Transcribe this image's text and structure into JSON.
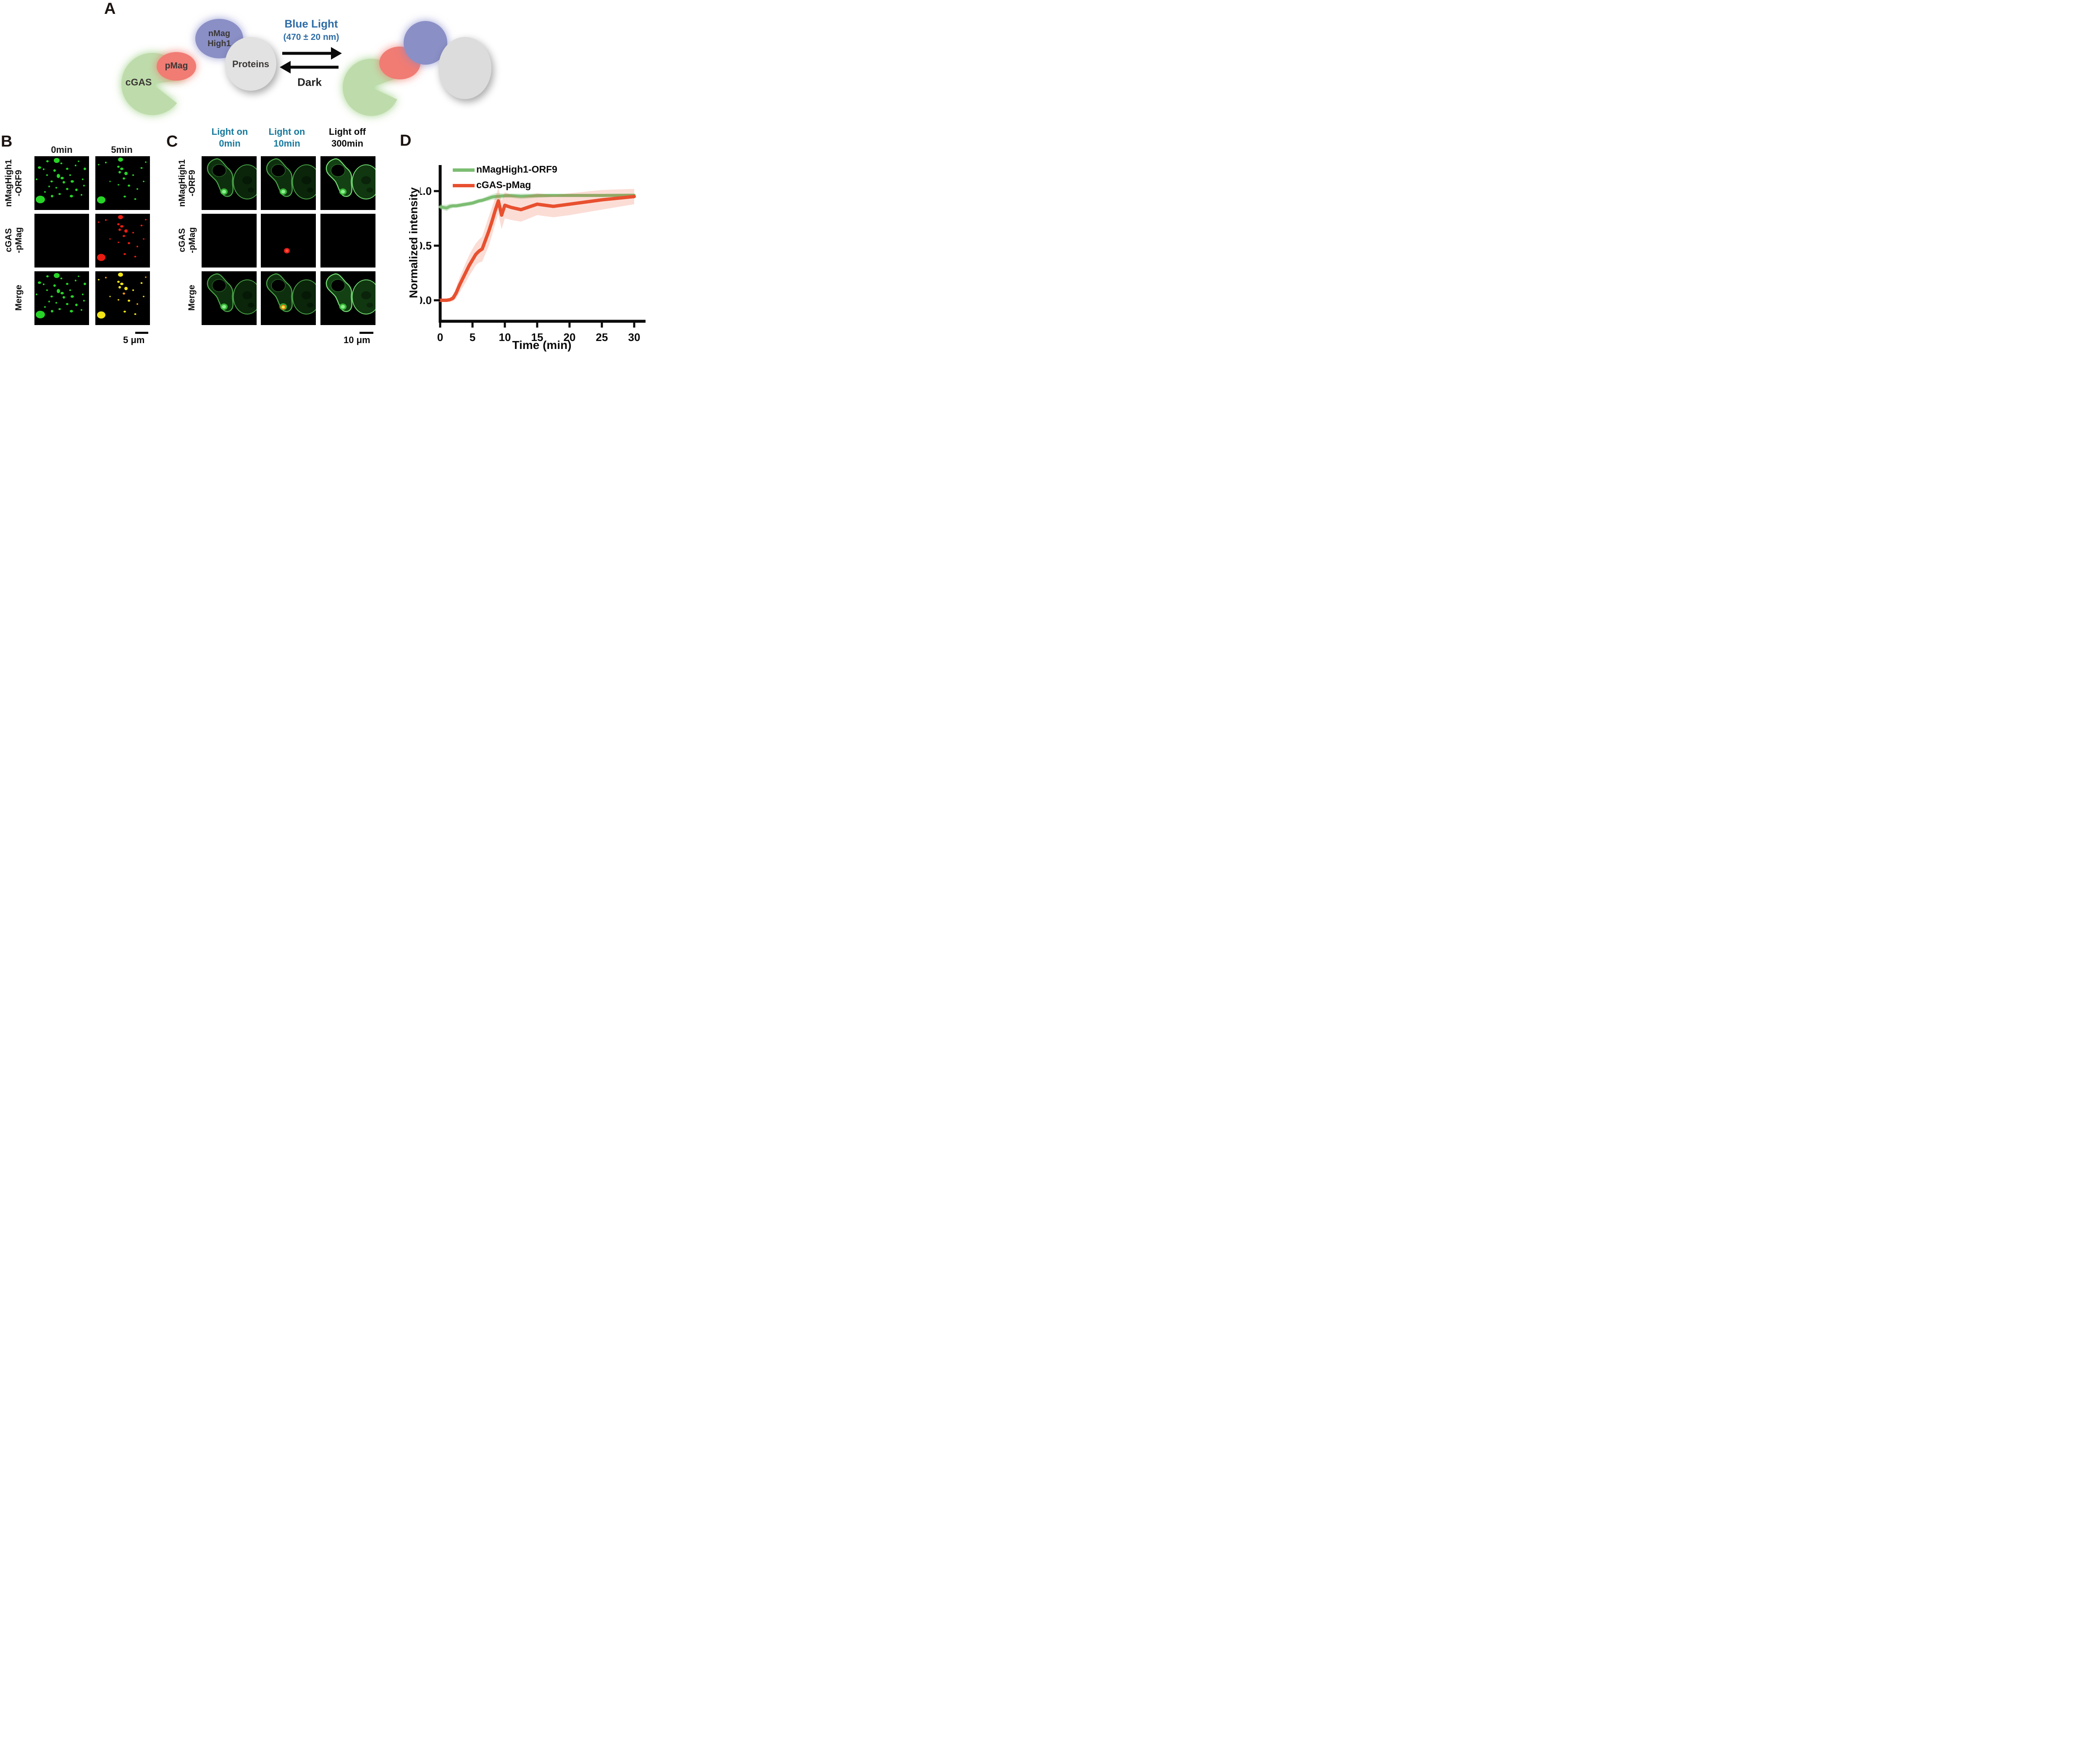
{
  "figure": {
    "panel_a": {
      "label": "A",
      "cgas": "cGAS",
      "pmag": "pMag",
      "nmag_line1": "nMag",
      "nmag_line2": "High1",
      "proteins": "Proteins",
      "blue_light_line1": "Blue Light",
      "blue_light_line2": "(470 ± 20 nm)",
      "dark": "Dark",
      "accent_blue": "#2d6ca6"
    },
    "panel_b": {
      "label": "B",
      "col_headers": [
        "0min",
        "5min"
      ],
      "row_labels": [
        [
          "nMagHigh1",
          "-ORF9"
        ],
        [
          "cGAS",
          "-pMag"
        ],
        [
          "Merge"
        ]
      ],
      "scale_bar": "5 μm"
    },
    "panel_c": {
      "label": "C",
      "col_headers": [
        [
          "Light on",
          "0min"
        ],
        [
          "Light on",
          "10min"
        ],
        [
          "Light off",
          "300min"
        ]
      ],
      "header_colors": [
        "#17799c",
        "#17799c",
        "#0a0a0a"
      ],
      "row_labels": [
        [
          "nMagHigh1",
          "-ORF9"
        ],
        [
          "cGAS",
          "-pMag"
        ],
        [
          "Merge"
        ]
      ],
      "scale_bar": "10 μm"
    },
    "panel_d": {
      "label": "D",
      "legend": [
        {
          "label": "nMagHigh1-ORF9",
          "color": "#7cbd72"
        },
        {
          "label": "cGAS-pMag",
          "color": "#e8502f"
        }
      ],
      "ylabel": "Normalized intensity",
      "xlabel": "Time (min)",
      "yticks": [
        "0.0",
        "0.5",
        "1.0"
      ],
      "xticks": [
        "0",
        "5",
        "10",
        "15",
        "20",
        "25",
        "30"
      ]
    }
  },
  "chart_data": {
    "type": "line",
    "title": "",
    "xlabel": "Time (min)",
    "ylabel": "Normalized intensity",
    "xlim": [
      0,
      30
    ],
    "ylim": [
      -0.08,
      1.15
    ],
    "xticks": [
      0,
      5,
      10,
      15,
      20,
      25,
      30
    ],
    "yticks": [
      0,
      0.5,
      1.0
    ],
    "grid": false,
    "legend_position": "top-left-inside",
    "bands": "shaded error bands around both series",
    "x": [
      0,
      0.5,
      1,
      1.5,
      2,
      2.5,
      3,
      3.5,
      4,
      4.5,
      5,
      5.5,
      6,
      6.5,
      7,
      7.5,
      8,
      8.5,
      9,
      9.5,
      10,
      11,
      12.5,
      15,
      17.5,
      20,
      25,
      30
    ],
    "series": [
      {
        "name": "nMagHigh1-ORF9",
        "color": "#7cbd72",
        "band_color": "rgba(124,189,114,0.30)",
        "values": [
          0.855,
          0.85,
          0.845,
          0.86,
          0.865,
          0.865,
          0.87,
          0.875,
          0.88,
          0.885,
          0.89,
          0.9,
          0.91,
          0.915,
          0.925,
          0.935,
          0.945,
          0.95,
          0.952,
          0.955,
          0.958,
          0.958,
          0.952,
          0.958,
          0.96,
          0.96,
          0.96,
          0.962
        ],
        "band_halfwidth": [
          0.025,
          0.025,
          0.03,
          0.025,
          0.02,
          0.02,
          0.02,
          0.02,
          0.02,
          0.02,
          0.02,
          0.02,
          0.02,
          0.02,
          0.02,
          0.025,
          0.025,
          0.03,
          0.03,
          0.025,
          0.02,
          0.02,
          0.025,
          0.02,
          0.015,
          0.015,
          0.015,
          0.015
        ]
      },
      {
        "name": "cGAS-pMag",
        "color": "#e8502f",
        "band_color": "rgba(233,86,50,0.20)",
        "values": [
          0,
          0,
          0,
          0.005,
          0.02,
          0.07,
          0.14,
          0.2,
          0.26,
          0.32,
          0.37,
          0.42,
          0.45,
          0.47,
          0.55,
          0.63,
          0.72,
          0.82,
          0.91,
          0.78,
          0.87,
          0.85,
          0.83,
          0.88,
          0.86,
          0.88,
          0.92,
          0.95
        ],
        "band_halfwidth": [
          0.005,
          0.005,
          0.008,
          0.015,
          0.03,
          0.05,
          0.07,
          0.08,
          0.09,
          0.095,
          0.1,
          0.1,
          0.105,
          0.115,
          0.125,
          0.135,
          0.13,
          0.12,
          0.12,
          0.13,
          0.12,
          0.115,
          0.11,
          0.1,
          0.1,
          0.1,
          0.09,
          0.07
        ]
      }
    ]
  }
}
